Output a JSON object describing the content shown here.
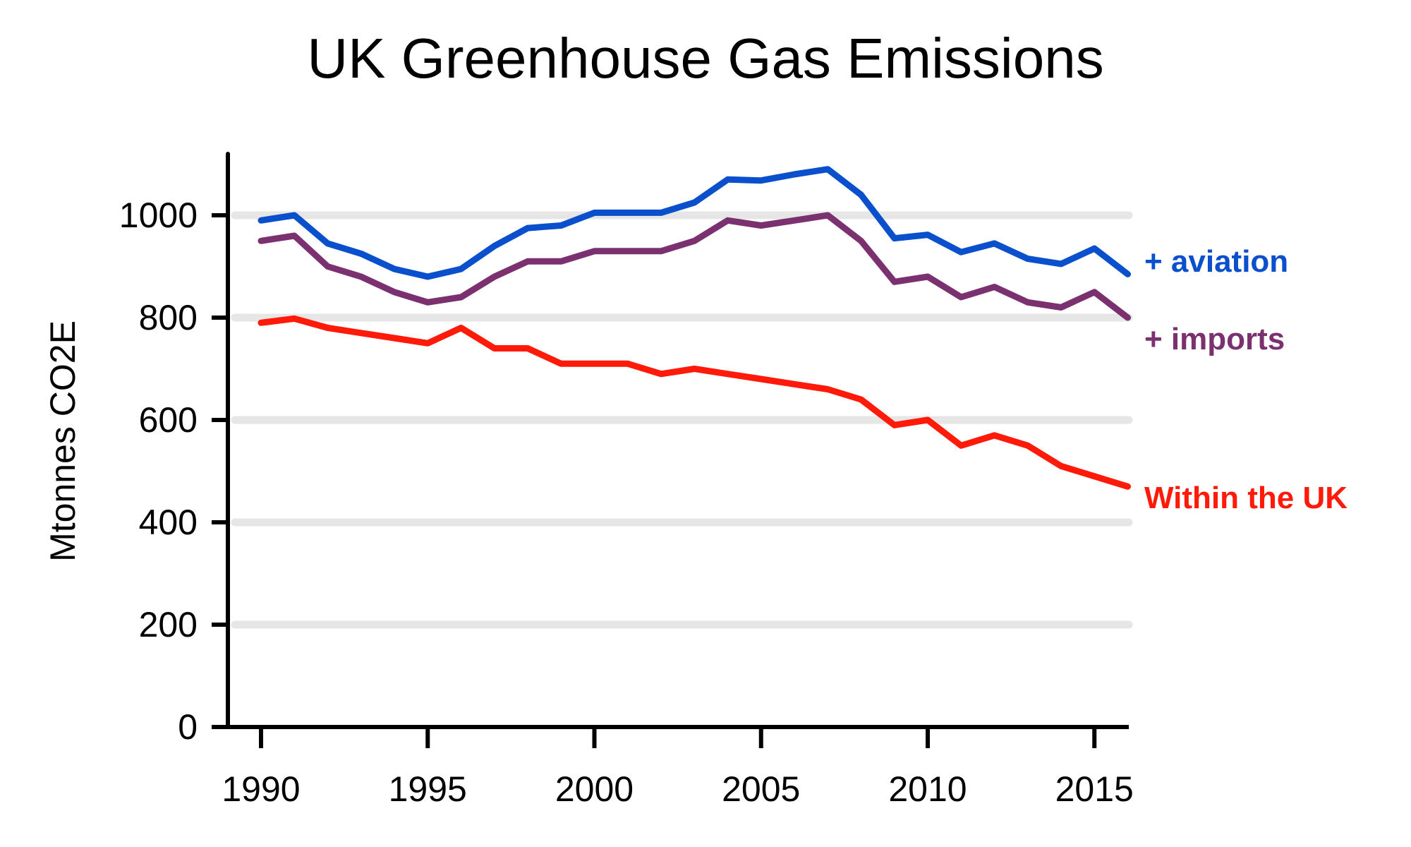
{
  "chart_data": {
    "type": "line",
    "title": "UK Greenhouse Gas Emissions",
    "xlabel": "",
    "ylabel": "Mtonnes CO2E",
    "xlim": [
      1989,
      2016
    ],
    "ylim": [
      0,
      1120
    ],
    "x_ticks": [
      1990,
      1995,
      2000,
      2005,
      2010,
      2015
    ],
    "y_ticks": [
      0,
      200,
      400,
      600,
      800,
      1000
    ],
    "gridlines": [
      200,
      400,
      600,
      800,
      1000
    ],
    "grid": "horizontal",
    "legend": "inline labels at right end of each line",
    "x": [
      1990,
      1991,
      1992,
      1993,
      1994,
      1995,
      1996,
      1997,
      1998,
      1999,
      2000,
      2001,
      2002,
      2003,
      2004,
      2005,
      2006,
      2007,
      2008,
      2009,
      2010,
      2011,
      2012,
      2013,
      2014,
      2015,
      2016
    ],
    "series": [
      {
        "name": "+ aviation",
        "color": "#0a4fcc",
        "values": [
          990,
          1000,
          945,
          925,
          895,
          880,
          895,
          940,
          975,
          980,
          1005,
          1005,
          1005,
          1025,
          1070,
          1068,
          1080,
          1090,
          1040,
          955,
          962,
          928,
          945,
          915,
          905,
          935,
          885
        ]
      },
      {
        "name": "+ imports",
        "color": "#7b3170",
        "values": [
          950,
          960,
          900,
          880,
          850,
          830,
          840,
          880,
          910,
          910,
          930,
          930,
          930,
          950,
          990,
          980,
          990,
          1000,
          950,
          870,
          880,
          840,
          860,
          830,
          820,
          850,
          800
        ]
      },
      {
        "name": "Within the UK",
        "color": "#ff1a0a",
        "values": [
          790,
          798,
          780,
          770,
          760,
          750,
          780,
          740,
          740,
          710,
          710,
          710,
          690,
          700,
          690,
          680,
          670,
          660,
          640,
          590,
          600,
          550,
          570,
          550,
          510,
          490,
          470
        ]
      }
    ]
  }
}
